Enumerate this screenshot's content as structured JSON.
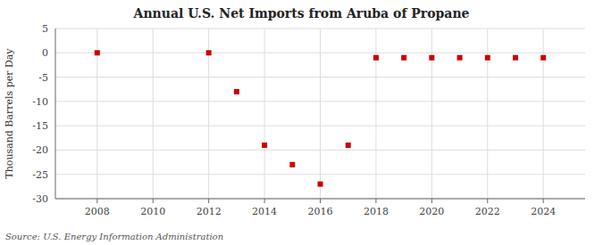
{
  "chart_data": {
    "type": "scatter",
    "title": "Annual U.S. Net Imports from Aruba of Propane",
    "y_label": "Thousand Barrels per Day",
    "source": "Source: U.S. Energy Information Administration",
    "x": [
      2008,
      2012,
      2013,
      2014,
      2015,
      2016,
      2017,
      2018,
      2019,
      2020,
      2021,
      2022,
      2023,
      2024
    ],
    "values": [
      0,
      0,
      -8,
      -19,
      -23,
      -27,
      -19,
      -1,
      -1,
      -1,
      -1,
      -1,
      -1,
      -1
    ],
    "color": "#cc0000",
    "marker": "square",
    "xlim": [
      2006.5,
      2025.5
    ],
    "ylim": [
      -30,
      5
    ],
    "xticks": [
      2008,
      2010,
      2012,
      2014,
      2016,
      2018,
      2020,
      2022,
      2024
    ],
    "yticks": [
      5,
      0,
      -5,
      -10,
      -15,
      -20,
      -25,
      -30
    ],
    "grid": true
  }
}
